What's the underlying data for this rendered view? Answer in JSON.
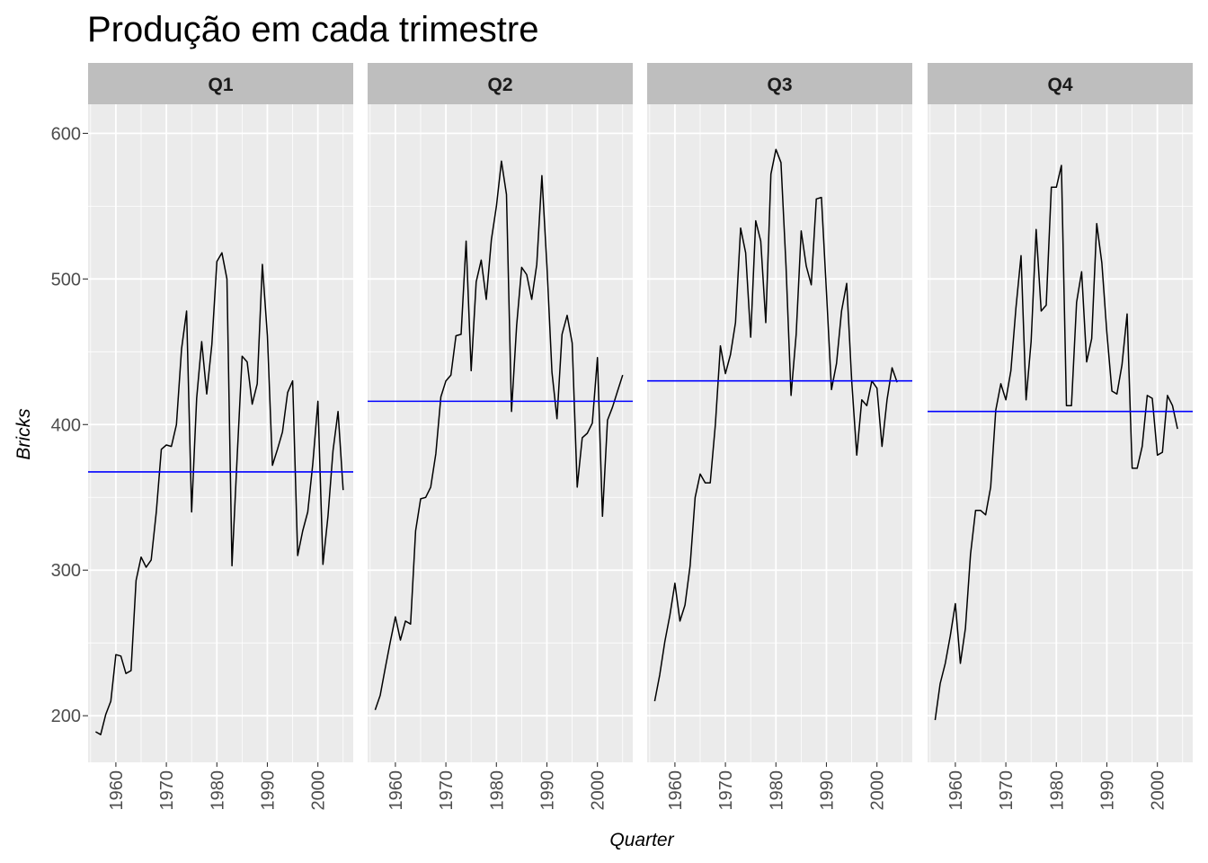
{
  "chart_data": {
    "type": "line",
    "title": "Produção em cada trimestre",
    "xlabel": "Quarter",
    "ylabel": "Bricks",
    "facet_by": "quarter",
    "x_ticks": [
      1960,
      1970,
      1980,
      1990,
      2000
    ],
    "y_ticks": [
      200,
      300,
      400,
      500,
      600
    ],
    "xlim": [
      1954.5,
      2007
    ],
    "ylim": [
      168,
      620
    ],
    "grid": true,
    "colors": {
      "panel_bg": "#ebebeb",
      "strip_bg": "#bebebe",
      "grid": "#ffffff",
      "series": "#000000",
      "mean_line": "#0000ff"
    },
    "facets": [
      {
        "label": "Q1",
        "mean": 367.5,
        "x": [
          1956,
          1957,
          1958,
          1959,
          1960,
          1961,
          1962,
          1963,
          1964,
          1965,
          1966,
          1967,
          1968,
          1969,
          1970,
          1971,
          1972,
          1973,
          1974,
          1975,
          1976,
          1977,
          1978,
          1979,
          1980,
          1981,
          1982,
          1983,
          1984,
          1985,
          1986,
          1987,
          1988,
          1989,
          1990,
          1991,
          1992,
          1993,
          1994,
          1995,
          1996,
          1997,
          1998,
          1999,
          2000,
          2001,
          2002,
          2003,
          2004,
          2005
        ],
        "y": [
          189,
          187,
          201,
          210,
          242,
          241,
          229,
          231,
          293,
          309,
          302,
          307,
          340,
          383,
          386,
          385,
          400,
          452,
          478,
          340,
          418,
          457,
          421,
          455,
          512,
          518,
          500,
          303,
          377,
          447,
          443,
          414,
          428,
          510,
          461,
          372,
          383,
          395,
          422,
          430,
          310,
          327,
          340,
          373,
          416,
          304,
          337,
          382,
          409,
          355
        ]
      },
      {
        "label": "Q2",
        "mean": 416,
        "x": [
          1956,
          1957,
          1958,
          1959,
          1960,
          1961,
          1962,
          1963,
          1964,
          1965,
          1966,
          1967,
          1968,
          1969,
          1970,
          1971,
          1972,
          1973,
          1974,
          1975,
          1976,
          1977,
          1978,
          1979,
          1980,
          1981,
          1982,
          1983,
          1984,
          1985,
          1986,
          1987,
          1988,
          1989,
          1990,
          1991,
          1992,
          1993,
          1994,
          1995,
          1996,
          1997,
          1998,
          1999,
          2000,
          2001,
          2002,
          2003,
          2004,
          2005
        ],
        "y": [
          204,
          214,
          233,
          251,
          268,
          252,
          265,
          263,
          327,
          349,
          350,
          357,
          380,
          419,
          430,
          434,
          461,
          462,
          526,
          437,
          498,
          513,
          486,
          527,
          550,
          581,
          558,
          409,
          468,
          508,
          503,
          486,
          510,
          571,
          509,
          436,
          404,
          462,
          475,
          456,
          357,
          391,
          394,
          401,
          446,
          337,
          403,
          412,
          423,
          434
        ]
      },
      {
        "label": "Q3",
        "mean": 430,
        "x": [
          1956,
          1957,
          1958,
          1959,
          1960,
          1961,
          1962,
          1963,
          1964,
          1965,
          1966,
          1967,
          1968,
          1969,
          1970,
          1971,
          1972,
          1973,
          1974,
          1975,
          1976,
          1977,
          1978,
          1979,
          1980,
          1981,
          1982,
          1983,
          1984,
          1985,
          1986,
          1987,
          1988,
          1989,
          1990,
          1991,
          1992,
          1993,
          1994,
          1995,
          1996,
          1997,
          1998,
          1999,
          2000,
          2001,
          2002,
          2003,
          2004
        ],
        "y": [
          210,
          228,
          251,
          269,
          291,
          265,
          276,
          303,
          350,
          366,
          360,
          360,
          400,
          454,
          435,
          448,
          470,
          535,
          518,
          460,
          540,
          526,
          470,
          572,
          589,
          580,
          509,
          420,
          462,
          533,
          509,
          496,
          555,
          556,
          491,
          424,
          442,
          478,
          497,
          430,
          379,
          417,
          413,
          430,
          425,
          385,
          417,
          439,
          429
        ]
      },
      {
        "label": "Q4",
        "mean": 409,
        "x": [
          1956,
          1957,
          1958,
          1959,
          1960,
          1961,
          1962,
          1963,
          1964,
          1965,
          1966,
          1967,
          1968,
          1969,
          1970,
          1971,
          1972,
          1973,
          1974,
          1975,
          1976,
          1977,
          1978,
          1979,
          1980,
          1981,
          1982,
          1983,
          1984,
          1985,
          1986,
          1987,
          1988,
          1989,
          1990,
          1991,
          1992,
          1993,
          1994,
          1995,
          1996,
          1997,
          1998,
          1999,
          2000,
          2001,
          2002,
          2003,
          2004
        ],
        "y": [
          197,
          222,
          236,
          255,
          277,
          236,
          260,
          311,
          341,
          341,
          338,
          357,
          410,
          428,
          417,
          437,
          480,
          516,
          417,
          457,
          534,
          478,
          482,
          563,
          563,
          578,
          413,
          413,
          484,
          505,
          443,
          459,
          538,
          511,
          463,
          423,
          421,
          441,
          476,
          370,
          370,
          385,
          420,
          418,
          379,
          381,
          420,
          413,
          397
        ]
      }
    ]
  }
}
